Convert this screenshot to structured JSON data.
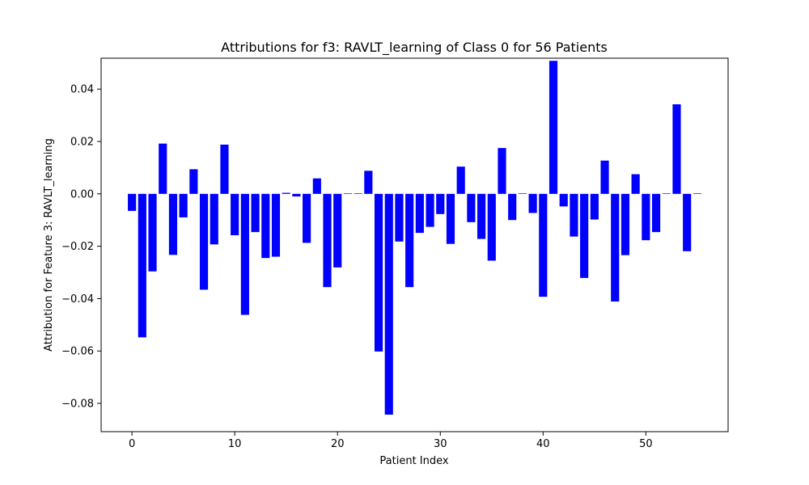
{
  "chart_data": {
    "type": "bar",
    "title": "Attributions for f3: RAVLT_learning of Class 0 for 56 Patients",
    "xlabel": "Patient Index",
    "ylabel": "Attribution for Feature 3: RAVLT_learning",
    "xlim": [
      -3,
      58
    ],
    "ylim": [
      -0.0908,
      0.0518
    ],
    "xticks": [
      0,
      10,
      20,
      30,
      40,
      50
    ],
    "xtick_labels": [
      "0",
      "10",
      "20",
      "30",
      "40",
      "50"
    ],
    "yticks": [
      -0.08,
      -0.06,
      -0.04,
      -0.02,
      0.0,
      0.02,
      0.04
    ],
    "ytick_labels": [
      "−0.08",
      "−0.06",
      "−0.04",
      "−0.02",
      "0.00",
      "0.02",
      "0.04"
    ],
    "grid": false,
    "bar_color": "#0000ff",
    "x": [
      0,
      1,
      2,
      3,
      4,
      5,
      6,
      7,
      8,
      9,
      10,
      11,
      12,
      13,
      14,
      15,
      16,
      17,
      18,
      19,
      20,
      21,
      22,
      23,
      24,
      25,
      26,
      27,
      28,
      29,
      30,
      31,
      32,
      33,
      34,
      35,
      36,
      37,
      38,
      39,
      40,
      41,
      42,
      43,
      44,
      45,
      46,
      47,
      48,
      49,
      50,
      51,
      52,
      53,
      54,
      55
    ],
    "values": [
      -0.0065,
      -0.0548,
      -0.0296,
      0.0192,
      -0.0233,
      -0.009,
      0.0094,
      -0.0366,
      -0.0193,
      0.0188,
      -0.0158,
      -0.0462,
      -0.0146,
      -0.0245,
      -0.024,
      0.0004,
      -0.001,
      -0.0187,
      0.0059,
      -0.0356,
      -0.0281,
      0.0002,
      0.0002,
      0.0088,
      -0.0602,
      -0.0843,
      -0.0182,
      -0.0356,
      -0.0149,
      -0.0126,
      -0.0077,
      -0.0191,
      0.0104,
      -0.0108,
      -0.0172,
      -0.0255,
      0.0175,
      -0.01,
      0.0002,
      -0.0073,
      -0.0393,
      0.0508,
      -0.0048,
      -0.0163,
      -0.0321,
      -0.0098,
      0.0127,
      -0.0411,
      -0.0234,
      0.0075,
      -0.0177,
      -0.0146,
      0.0002,
      0.0342,
      -0.0219,
      0.0002
    ]
  }
}
